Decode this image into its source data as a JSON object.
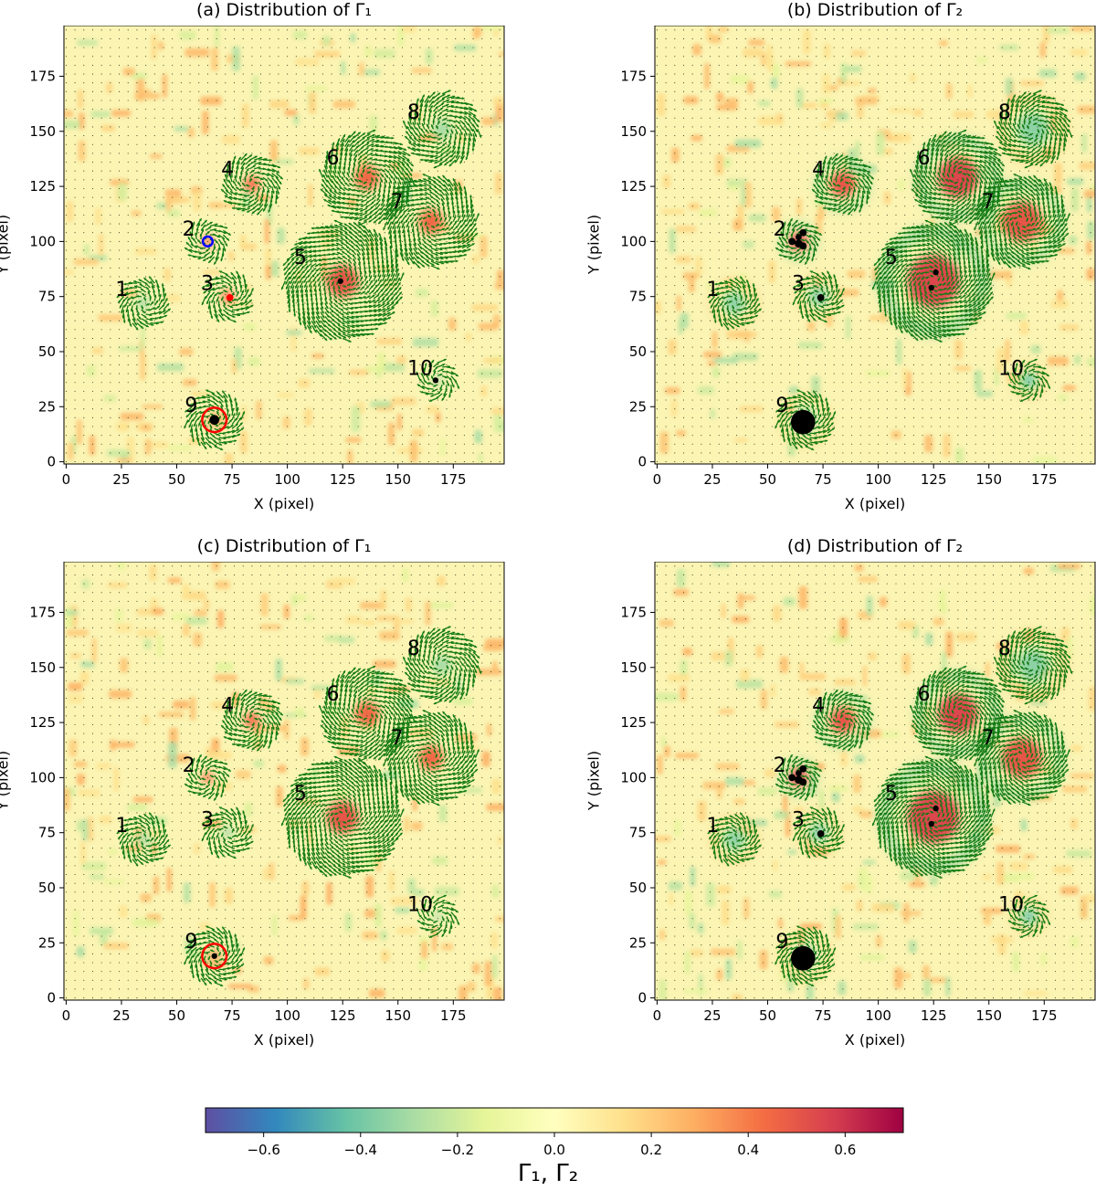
{
  "chart_data": [
    {
      "type": "heatmap",
      "panel_label": "(a)",
      "title": "(a) Distribution of Γ₁",
      "quantity": "gamma1",
      "xlabel": "X (pixel)",
      "ylabel": "Y (pixel)",
      "xlim": [
        -1,
        198
      ],
      "ylim": [
        -1,
        198
      ],
      "xticks": [
        0,
        25,
        50,
        75,
        100,
        125,
        150,
        175
      ],
      "yticks": [
        0,
        25,
        50,
        75,
        100,
        125,
        150,
        175
      ],
      "vortices": [
        {
          "label": "1",
          "x": 35,
          "y": 72,
          "size": 11,
          "gamma1": -0.3,
          "gamma2": -0.35
        },
        {
          "label": "2",
          "x": 64,
          "y": 100,
          "size": 9,
          "gamma1": 0.45,
          "gamma2": 0.55
        },
        {
          "label": "3",
          "x": 73,
          "y": 75,
          "size": 10,
          "gamma1": 0.45,
          "gamma2": -0.35
        },
        {
          "label": "4",
          "x": 84,
          "y": 126,
          "size": 13,
          "gamma1": 0.45,
          "gamma2": 0.5
        },
        {
          "label": "5",
          "x": 125,
          "y": 82,
          "size": 26,
          "gamma1": 0.5,
          "gamma2": 0.55
        },
        {
          "label": "6",
          "x": 136,
          "y": 129,
          "size": 20,
          "gamma1": 0.45,
          "gamma2": 0.55
        },
        {
          "label": "7",
          "x": 165,
          "y": 109,
          "size": 20,
          "gamma1": 0.45,
          "gamma2": 0.5
        },
        {
          "label": "8",
          "x": 170,
          "y": 151,
          "size": 16,
          "gamma1": -0.3,
          "gamma2": -0.35
        },
        {
          "label": "9",
          "x": 67,
          "y": 19,
          "size": 12,
          "gamma1": 0.3,
          "gamma2": -0.3
        },
        {
          "label": "10",
          "x": 168,
          "y": 37,
          "size": 8,
          "gamma1": -0.3,
          "gamma2": -0.4
        }
      ],
      "markers": [
        {
          "shape": "dot",
          "color": "#000000",
          "x": 124,
          "y": 82,
          "r": 1.3
        },
        {
          "shape": "dot",
          "color": "#000000",
          "x": 167,
          "y": 37,
          "r": 1.3
        },
        {
          "shape": "dot",
          "color": "#000000",
          "x": 67,
          "y": 19,
          "r": 2.2
        },
        {
          "shape": "ring",
          "color": "#ff0000",
          "x": 67,
          "y": 19,
          "r": 5.5
        },
        {
          "shape": "dot",
          "color": "#ff0000",
          "x": 74,
          "y": 74.5,
          "r": 1.6
        },
        {
          "shape": "ring",
          "color": "#0000ff",
          "x": 64,
          "y": 100,
          "r": 2.2
        }
      ]
    },
    {
      "type": "heatmap",
      "panel_label": "(b)",
      "title": "(b) Distribution of Γ₂",
      "quantity": "gamma2",
      "xlabel": "X (pixel)",
      "ylabel": "Y (pixel)",
      "xlim": [
        -1,
        198
      ],
      "ylim": [
        -1,
        198
      ],
      "xticks": [
        0,
        25,
        50,
        75,
        100,
        125,
        150,
        175
      ],
      "yticks": [
        0,
        25,
        50,
        75,
        100,
        125,
        150,
        175
      ],
      "vortices": [
        {
          "label": "1",
          "x": 35,
          "y": 72,
          "size": 11,
          "gamma1": -0.3,
          "gamma2": -0.35
        },
        {
          "label": "2",
          "x": 64,
          "y": 100,
          "size": 9,
          "gamma1": 0.45,
          "gamma2": 0.55
        },
        {
          "label": "3",
          "x": 73,
          "y": 75,
          "size": 10,
          "gamma1": 0.45,
          "gamma2": -0.35
        },
        {
          "label": "4",
          "x": 84,
          "y": 126,
          "size": 13,
          "gamma1": 0.45,
          "gamma2": 0.5
        },
        {
          "label": "5",
          "x": 125,
          "y": 82,
          "size": 26,
          "gamma1": 0.5,
          "gamma2": 0.55
        },
        {
          "label": "6",
          "x": 136,
          "y": 129,
          "size": 20,
          "gamma1": 0.45,
          "gamma2": 0.55
        },
        {
          "label": "7",
          "x": 165,
          "y": 109,
          "size": 20,
          "gamma1": 0.45,
          "gamma2": 0.5
        },
        {
          "label": "8",
          "x": 170,
          "y": 151,
          "size": 16,
          "gamma1": -0.3,
          "gamma2": -0.35
        },
        {
          "label": "9",
          "x": 67,
          "y": 19,
          "size": 12,
          "gamma1": 0.3,
          "gamma2": -0.3
        },
        {
          "label": "10",
          "x": 168,
          "y": 37,
          "size": 8,
          "gamma1": -0.3,
          "gamma2": -0.4
        }
      ],
      "markers": [
        {
          "shape": "dot",
          "color": "#000000",
          "x": 66,
          "y": 18,
          "r": 5.5
        },
        {
          "shape": "dot",
          "color": "#000000",
          "x": 126,
          "y": 86,
          "r": 1.3
        },
        {
          "shape": "dot",
          "color": "#000000",
          "x": 124,
          "y": 79,
          "r": 1.3
        },
        {
          "shape": "dot",
          "color": "#000000",
          "x": 74,
          "y": 74.5,
          "r": 1.6
        },
        {
          "shape": "dot",
          "color": "#000000",
          "x": 61,
          "y": 100,
          "r": 1.6
        },
        {
          "shape": "dot",
          "color": "#000000",
          "x": 64,
          "y": 99,
          "r": 1.8
        },
        {
          "shape": "dot",
          "color": "#000000",
          "x": 66,
          "y": 104,
          "r": 1.6
        },
        {
          "shape": "dot",
          "color": "#000000",
          "x": 66,
          "y": 98,
          "r": 1.6
        },
        {
          "shape": "dot",
          "color": "#000000",
          "x": 64,
          "y": 102,
          "r": 1.4
        }
      ]
    },
    {
      "type": "heatmap",
      "panel_label": "(c)",
      "title": "(c) Distribution of Γ₁",
      "quantity": "gamma1",
      "xlabel": "X (pixel)",
      "ylabel": "Y (pixel)",
      "xlim": [
        -1,
        198
      ],
      "ylim": [
        -1,
        198
      ],
      "xticks": [
        0,
        25,
        50,
        75,
        100,
        125,
        150,
        175
      ],
      "yticks": [
        0,
        25,
        50,
        75,
        100,
        125,
        150,
        175
      ],
      "vortices": [
        {
          "label": "1",
          "x": 35,
          "y": 72,
          "size": 11,
          "gamma1": -0.3,
          "gamma2": -0.35
        },
        {
          "label": "2",
          "x": 64,
          "y": 100,
          "size": 9,
          "gamma1": 0.45,
          "gamma2": 0.55
        },
        {
          "label": "3",
          "x": 73,
          "y": 75,
          "size": 10,
          "gamma1": -0.3,
          "gamma2": -0.35
        },
        {
          "label": "4",
          "x": 84,
          "y": 126,
          "size": 13,
          "gamma1": 0.45,
          "gamma2": 0.5
        },
        {
          "label": "5",
          "x": 125,
          "y": 82,
          "size": 26,
          "gamma1": 0.5,
          "gamma2": 0.55
        },
        {
          "label": "6",
          "x": 136,
          "y": 129,
          "size": 20,
          "gamma1": 0.45,
          "gamma2": 0.55
        },
        {
          "label": "7",
          "x": 165,
          "y": 109,
          "size": 20,
          "gamma1": 0.45,
          "gamma2": 0.5
        },
        {
          "label": "8",
          "x": 170,
          "y": 151,
          "size": 16,
          "gamma1": -0.3,
          "gamma2": -0.35
        },
        {
          "label": "9",
          "x": 67,
          "y": 19,
          "size": 12,
          "gamma1": 0.3,
          "gamma2": -0.3
        },
        {
          "label": "10",
          "x": 168,
          "y": 37,
          "size": 8,
          "gamma1": -0.3,
          "gamma2": -0.4
        }
      ],
      "markers": [
        {
          "shape": "dot",
          "color": "#000000",
          "x": 67,
          "y": 19,
          "r": 1.3
        },
        {
          "shape": "ring",
          "color": "#ff0000",
          "x": 67,
          "y": 19,
          "r": 5.5
        }
      ]
    },
    {
      "type": "heatmap",
      "panel_label": "(d)",
      "title": "(d) Distribution of Γ₂",
      "quantity": "gamma2",
      "xlabel": "X (pixel)",
      "ylabel": "Y (pixel)",
      "xlim": [
        -1,
        198
      ],
      "ylim": [
        -1,
        198
      ],
      "xticks": [
        0,
        25,
        50,
        75,
        100,
        125,
        150,
        175
      ],
      "yticks": [
        0,
        25,
        50,
        75,
        100,
        125,
        150,
        175
      ],
      "vortices": [
        {
          "label": "1",
          "x": 35,
          "y": 72,
          "size": 11,
          "gamma1": -0.3,
          "gamma2": -0.35
        },
        {
          "label": "2",
          "x": 64,
          "y": 100,
          "size": 9,
          "gamma1": 0.45,
          "gamma2": 0.55
        },
        {
          "label": "3",
          "x": 73,
          "y": 75,
          "size": 10,
          "gamma1": 0.45,
          "gamma2": -0.35
        },
        {
          "label": "4",
          "x": 84,
          "y": 126,
          "size": 13,
          "gamma1": 0.45,
          "gamma2": 0.5
        },
        {
          "label": "5",
          "x": 125,
          "y": 82,
          "size": 26,
          "gamma1": 0.5,
          "gamma2": 0.55
        },
        {
          "label": "6",
          "x": 136,
          "y": 129,
          "size": 20,
          "gamma1": 0.45,
          "gamma2": 0.55
        },
        {
          "label": "7",
          "x": 165,
          "y": 109,
          "size": 20,
          "gamma1": 0.45,
          "gamma2": 0.5
        },
        {
          "label": "8",
          "x": 170,
          "y": 151,
          "size": 16,
          "gamma1": -0.3,
          "gamma2": -0.35
        },
        {
          "label": "9",
          "x": 67,
          "y": 19,
          "size": 12,
          "gamma1": 0.3,
          "gamma2": -0.3
        },
        {
          "label": "10",
          "x": 168,
          "y": 37,
          "size": 8,
          "gamma1": -0.3,
          "gamma2": -0.4
        }
      ],
      "markers": [
        {
          "shape": "dot",
          "color": "#000000",
          "x": 66,
          "y": 18,
          "r": 5.5
        },
        {
          "shape": "dot",
          "color": "#000000",
          "x": 126,
          "y": 86,
          "r": 1.3
        },
        {
          "shape": "dot",
          "color": "#000000",
          "x": 124,
          "y": 79,
          "r": 1.3
        },
        {
          "shape": "dot",
          "color": "#000000",
          "x": 74,
          "y": 74.5,
          "r": 1.6
        },
        {
          "shape": "dot",
          "color": "#000000",
          "x": 61,
          "y": 100,
          "r": 1.6
        },
        {
          "shape": "dot",
          "color": "#000000",
          "x": 64,
          "y": 99,
          "r": 1.8
        },
        {
          "shape": "dot",
          "color": "#000000",
          "x": 66,
          "y": 104,
          "r": 1.6
        },
        {
          "shape": "dot",
          "color": "#000000",
          "x": 66,
          "y": 98,
          "r": 1.6
        },
        {
          "shape": "dot",
          "color": "#000000",
          "x": 64,
          "y": 102,
          "r": 1.4
        }
      ]
    }
  ],
  "colorbar": {
    "label": "Γ₁, Γ₂",
    "range": [
      -0.72,
      0.72
    ],
    "ticks": [
      -0.6,
      -0.4,
      -0.2,
      0.0,
      0.2,
      0.4,
      0.6
    ],
    "tick_labels": [
      "−0.6",
      "−0.4",
      "−0.2",
      "0.0",
      "0.2",
      "0.4",
      "0.6"
    ],
    "colormap": "Spectral_r",
    "colormap_stops": [
      "#5e4fa2",
      "#3288bd",
      "#66c2a5",
      "#abdda4",
      "#e6f598",
      "#ffffbf",
      "#fee08b",
      "#fdae61",
      "#f46d43",
      "#d53e4f",
      "#9e0142"
    ]
  },
  "colors": {
    "arrow": "#127b12",
    "background_mid": "#fbf4b3"
  }
}
